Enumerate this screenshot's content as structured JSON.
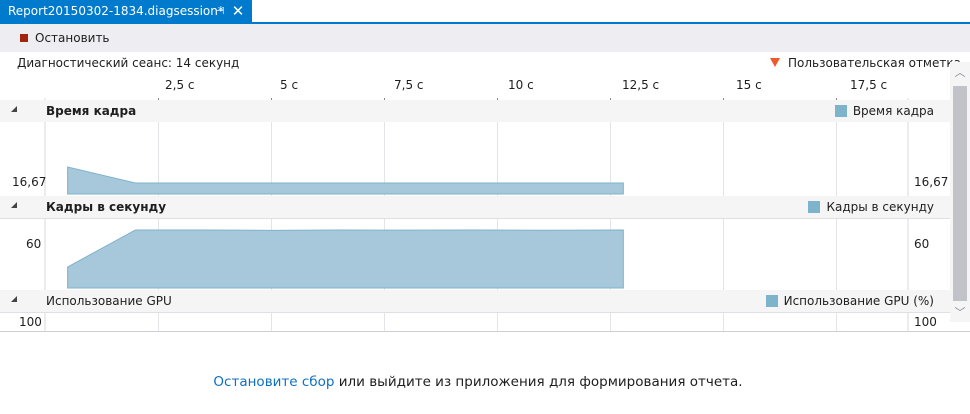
{
  "tab": {
    "title": "Report20150302-1834.diagsession*",
    "pin_glyph": "⊣",
    "close_glyph": "✕"
  },
  "toolbar": {
    "stop_label": "Остановить"
  },
  "session": {
    "label": "Диагностический сеанс: 14 секунд",
    "marker_label": "Пользовательская отметка"
  },
  "ruler": {
    "ticks": [
      "2,5 с",
      "5 с",
      "7,5 с",
      "10 с",
      "12,5 с",
      "15 с",
      "17,5 с"
    ]
  },
  "sections": {
    "frame_time": {
      "title": "Время кадра",
      "legend": "Время кадра",
      "y_label": "16,67"
    },
    "fps": {
      "title": "Кадры в секунду",
      "legend": "Кадры в секунду",
      "y_label": "60"
    },
    "gpu": {
      "title": "Использование GPU",
      "legend": "Использование GPU (%)",
      "y_label": "100"
    }
  },
  "footer": {
    "link_text": "Остановите сбор",
    "rest_text": " или выйдите из приложения для формирования отчета."
  },
  "colors": {
    "accent": "#007acc",
    "series_fill": "#a6c8da",
    "series_stroke": "#7eb3cc",
    "marker": "#f05a28",
    "stop": "#a1260d",
    "link": "#0e70c0"
  },
  "chart_data": [
    {
      "type": "area",
      "series": [
        {
          "name": "Время кадра",
          "x": [
            0.5,
            2,
            12.8
          ],
          "values": [
            18,
            16.67,
            16.67
          ]
        }
      ],
      "ylabel": "16,67",
      "x_ticks": [
        "2,5 с",
        "5 с",
        "7,5 с",
        "10 с",
        "12,5 с",
        "15 с",
        "17,5 с"
      ],
      "xlim": [
        0,
        19.1
      ]
    },
    {
      "type": "area",
      "series": [
        {
          "name": "Кадры в секунду",
          "x": [
            0.5,
            2,
            3.5,
            5,
            6.5,
            8,
            9.5,
            11,
            12,
            12.8
          ],
          "values": [
            10,
            60,
            60,
            59.5,
            60,
            59.8,
            60,
            59.6,
            59.8,
            60
          ]
        }
      ],
      "ylabel": "60",
      "x_ticks": [
        "2,5 с",
        "5 с",
        "7,5 с",
        "10 с",
        "12,5 с",
        "15 с",
        "17,5 с"
      ],
      "xlim": [
        0,
        19.1
      ]
    },
    {
      "type": "area",
      "series": [
        {
          "name": "Использование GPU (%)",
          "x": [],
          "values": []
        }
      ],
      "ylabel": "100",
      "x_ticks": [
        "2,5 с",
        "5 с",
        "7,5 с",
        "10 с",
        "12,5 с",
        "15 с",
        "17,5 с"
      ],
      "xlim": [
        0,
        19.1
      ]
    }
  ]
}
